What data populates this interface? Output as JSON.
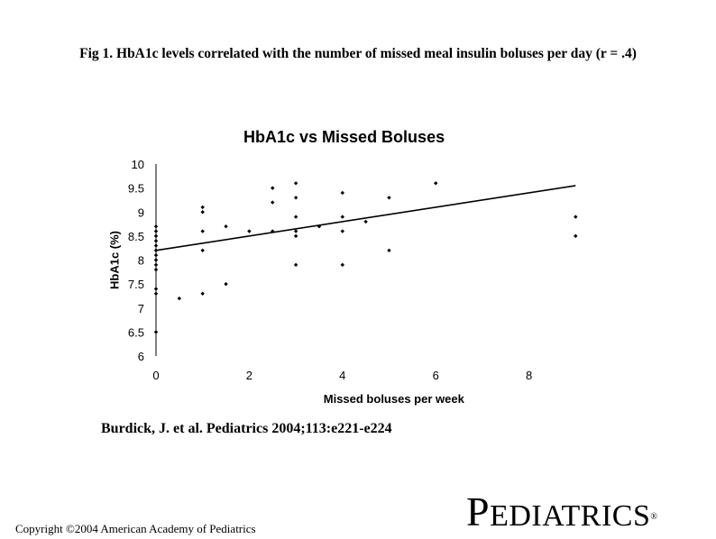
{
  "figure": {
    "caption": "Fig 1. HbA1c levels correlated with the number of missed meal insulin boluses per day (r = .4)",
    "citation": "Burdick, J. et al. Pediatrics 2004;113:e221-e224",
    "copyright": "Copyright ©2004 American Academy of Pediatrics",
    "logo": {
      "first": "P",
      "rest": "EDIATRICS",
      "mark": "®"
    }
  },
  "chart_data": {
    "type": "scatter",
    "title": "HbA1c vs Missed Boluses",
    "xlabel": "Missed boluses per week",
    "ylabel": "HbA1c (%)",
    "xlim": [
      0,
      10
    ],
    "ylim": [
      6,
      10
    ],
    "xticks": [
      "0",
      "2",
      "4",
      "6",
      "8"
    ],
    "xtick_values": [
      0,
      2,
      4,
      6,
      8
    ],
    "yticks": [
      "6",
      "6.5",
      "7",
      "7.5",
      "8",
      "8.5",
      "9",
      "9.5",
      "10"
    ],
    "ytick_values": [
      6,
      6.5,
      7,
      7.5,
      8,
      8.5,
      9,
      9.5,
      10
    ],
    "grid": false,
    "legend": "none",
    "points": [
      {
        "x": 0,
        "y": 8.7
      },
      {
        "x": 0,
        "y": 8.6
      },
      {
        "x": 0,
        "y": 8.5
      },
      {
        "x": 0,
        "y": 8.4
      },
      {
        "x": 0,
        "y": 8.3
      },
      {
        "x": 0,
        "y": 8.2
      },
      {
        "x": 0,
        "y": 8.1
      },
      {
        "x": 0,
        "y": 8.0
      },
      {
        "x": 0,
        "y": 7.9
      },
      {
        "x": 0,
        "y": 7.8
      },
      {
        "x": 0,
        "y": 7.4
      },
      {
        "x": 0,
        "y": 7.3
      },
      {
        "x": 0,
        "y": 6.5
      },
      {
        "x": 0.5,
        "y": 7.2
      },
      {
        "x": 1,
        "y": 9.1
      },
      {
        "x": 1,
        "y": 9.0
      },
      {
        "x": 1,
        "y": 8.6
      },
      {
        "x": 1,
        "y": 8.2
      },
      {
        "x": 1,
        "y": 7.3
      },
      {
        "x": 1.5,
        "y": 8.7
      },
      {
        "x": 1.5,
        "y": 7.5
      },
      {
        "x": 2,
        "y": 8.6
      },
      {
        "x": 2.5,
        "y": 9.5
      },
      {
        "x": 2.5,
        "y": 9.2
      },
      {
        "x": 2.5,
        "y": 8.6
      },
      {
        "x": 3,
        "y": 9.6
      },
      {
        "x": 3,
        "y": 9.3
      },
      {
        "x": 3,
        "y": 8.9
      },
      {
        "x": 3,
        "y": 8.6
      },
      {
        "x": 3,
        "y": 8.5
      },
      {
        "x": 3,
        "y": 7.9
      },
      {
        "x": 3.5,
        "y": 8.7
      },
      {
        "x": 4,
        "y": 9.4
      },
      {
        "x": 4,
        "y": 8.9
      },
      {
        "x": 4,
        "y": 8.6
      },
      {
        "x": 4,
        "y": 7.9
      },
      {
        "x": 4.5,
        "y": 8.8
      },
      {
        "x": 5,
        "y": 9.3
      },
      {
        "x": 5,
        "y": 8.2
      },
      {
        "x": 6,
        "y": 9.6
      },
      {
        "x": 9,
        "y": 8.9
      },
      {
        "x": 9,
        "y": 8.5
      }
    ],
    "trendline": {
      "x": [
        0,
        9
      ],
      "y": [
        8.2,
        9.55
      ]
    },
    "colors": {
      "points": "#000000",
      "line": "#000000",
      "axes": "#000000",
      "text": "#000000"
    }
  }
}
